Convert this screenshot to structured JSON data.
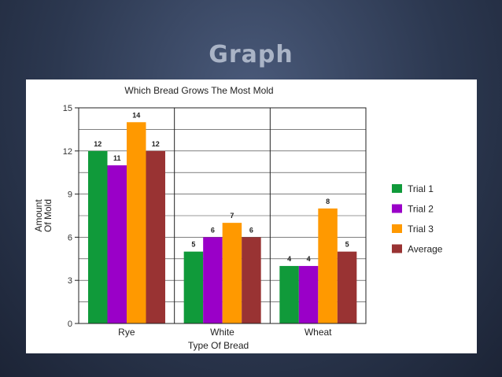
{
  "slide": {
    "title": "Graph"
  },
  "chart_data": {
    "type": "bar",
    "title": "Which Bread Grows The Most Mold",
    "xlabel": "Type Of Bread",
    "ylabel": [
      "Amount",
      "Of Mold"
    ],
    "categories": [
      "Rye",
      "White",
      "Wheat"
    ],
    "ylim": [
      0,
      15
    ],
    "yticks": [
      0,
      3,
      6,
      9,
      12,
      15
    ],
    "grid": true,
    "legend_position": "right",
    "series": [
      {
        "name": "Trial 1",
        "color": "#109a3a",
        "values": [
          12,
          5,
          4
        ]
      },
      {
        "name": "Trial 2",
        "color": "#9a00c8",
        "values": [
          11,
          6,
          4
        ]
      },
      {
        "name": "Trial 3",
        "color": "#ff9900",
        "values": [
          14,
          7,
          8
        ]
      },
      {
        "name": "Average",
        "color": "#993333",
        "values": [
          12,
          6,
          5
        ]
      }
    ]
  }
}
